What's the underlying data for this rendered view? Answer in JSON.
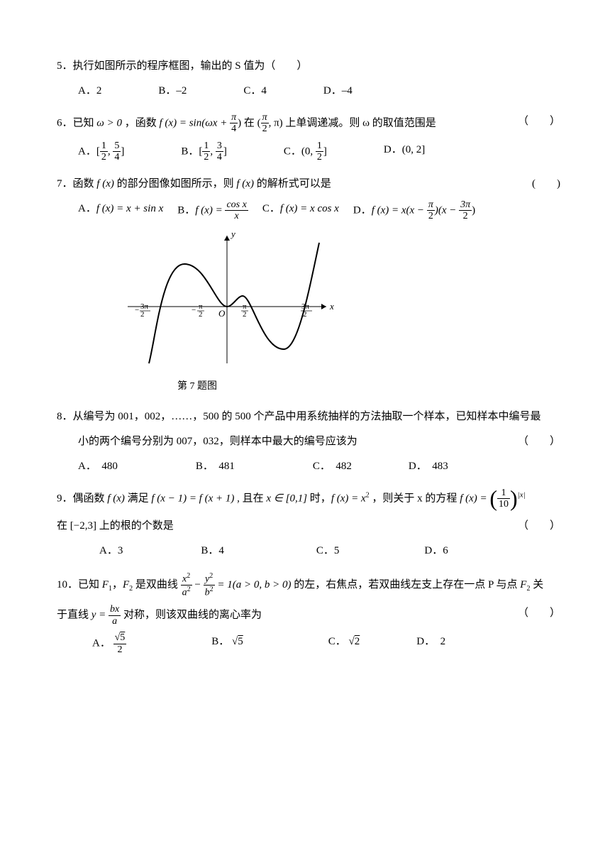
{
  "q5": {
    "num": "5．",
    "stem": "执行如图所示的程序框图，输出的 S 值为（　　）",
    "optA_label": "A．",
    "optA": "2",
    "optB_label": "B．",
    "optB": "–2",
    "optC_label": "C．",
    "optC": "4",
    "optD_label": "D．",
    "optD": "–4"
  },
  "q6": {
    "num": "6．",
    "stem_1": "已知 ",
    "omega_gt": "ω > 0",
    "stem_2": " ，函数 ",
    "fx": "f (x) = sin(ωx + ",
    "pi_num": "π",
    "pi_den": "4",
    "stem_3": ") 在 (",
    "pi2_num": "π",
    "pi2_den": "2",
    "stem_4": ", π) 上单调递减。则 ω 的取值范围是",
    "paren": "（　　）",
    "optA_label": "A．",
    "optB_label": "B．",
    "optC_label": "C．",
    "optD_label": "D．",
    "a_l_num": "1",
    "a_l_den": "2",
    "a_r_num": "5",
    "a_r_den": "4",
    "b_l_num": "1",
    "b_l_den": "2",
    "b_r_num": "3",
    "b_r_den": "4",
    "c_r_num": "1",
    "c_r_den": "2",
    "d_text": "(0, 2]"
  },
  "q7": {
    "num": "7．",
    "stem_1": "函数 ",
    "fx": "f (x)",
    "stem_2": " 的部分图像如图所示，则 ",
    "stem_3": " 的解析式可以是",
    "paren": "(　　)",
    "optA_label": "A．",
    "optA": "f (x) = x + sin x",
    "optB_label": "B．",
    "optB_l": "f (x) = ",
    "optB_num": "cos x",
    "optB_den": "x",
    "optC_label": "C．",
    "optC": "f (x) = x cos x",
    "optD_label": "D．",
    "optD_l": "f (x) = x(x − ",
    "d1_num": "π",
    "d1_den": "2",
    "optD_m": ")(x − ",
    "d2_num": "3π",
    "d2_den": "2",
    "optD_r": ")",
    "caption": "第 7 题图",
    "graph": {
      "x_ticks": [
        "−3π/2",
        "−π/2",
        "π/2",
        "3π/2"
      ],
      "x_label": "x",
      "y_label": "y",
      "origin": "O"
    }
  },
  "q8": {
    "num": "8．",
    "stem_1": "从编号为 001，002，……，500 的 500 个产品中用系统抽样的方法抽取一个样本，已知样本中编号最",
    "stem_2": "小的两个编号分别为 007，032，则样本中最大的编号应该为",
    "paren": "（　　）",
    "optA_label": "A．",
    "optA": "480",
    "optB_label": "B．",
    "optB": "481",
    "optC_label": "C．",
    "optC": "482",
    "optD_label": "D．",
    "optD": "483"
  },
  "q9": {
    "num": "9．",
    "stem_1": "偶函数 ",
    "fx": "f (x)",
    "stem_2": " 满足 ",
    "eq1": "f (x − 1) = f (x + 1)",
    "stem_3": " , 且在 ",
    "dom": "x ∈ [0,1]",
    "stem_4": " 时，",
    "eq2": "f (x) = x",
    "sq": "2",
    "stem_5": " ，则关于 x 的方程 ",
    "eq3_l": "f (x) = ",
    "frac_num": "1",
    "frac_den": "10",
    "exp": "|x|",
    "stem_6": "在 [−2,3] 上的根的个数是",
    "paren": "（　　）",
    "optA_label": "A．",
    "optA": "3",
    "optB_label": "B．",
    "optB": "4",
    "optC_label": "C．",
    "optC": "5",
    "optD_label": "D．",
    "optD": "6"
  },
  "q10": {
    "num": "10．",
    "stem_1": "已知 ",
    "f1": "F",
    "f1s": "1",
    "comma": "，",
    "f2": "F",
    "f2s": "2",
    "stem_2": " 是双曲线 ",
    "h_num1": "x",
    "h_num1e": "2",
    "h_den1": "a",
    "h_den1e": "2",
    "minus": " − ",
    "h_num2": "y",
    "h_num2e": "2",
    "h_den2": "b",
    "h_den2e": "2",
    "eq": " = 1(a > 0, b > 0)",
    "stem_3": " 的左，右焦点，若双曲线左支上存在一点 P 与点 ",
    "stem_4": " 关",
    "line2_1": "于直线 ",
    "y_eq": "y = ",
    "bx_num": "bx",
    "bx_den": "a",
    "line2_2": " 对称，则该双曲线的离心率为",
    "paren": "（　　）",
    "optA_label": "A．",
    "a_num": "√5",
    "a_den": "2",
    "optB_label": "B．",
    "optB": "√5",
    "optC_label": "C．",
    "optC": "√2",
    "optD_label": "D．",
    "optD": "2"
  }
}
